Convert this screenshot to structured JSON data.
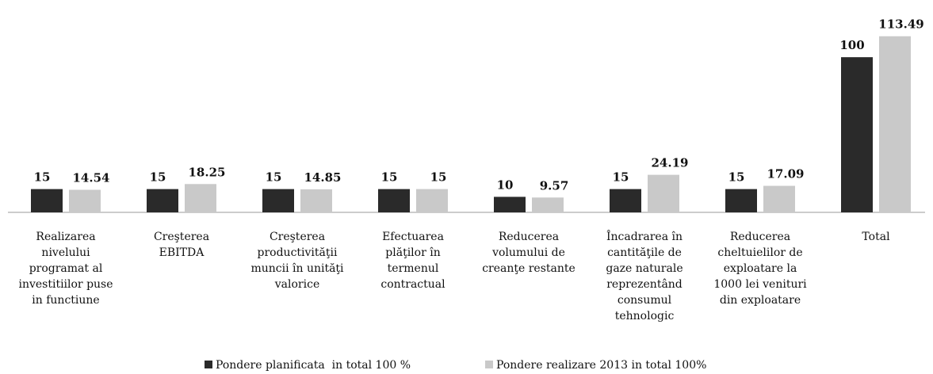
{
  "chart_data": {
    "type": "bar",
    "categories": [
      "Realizarea\nnivelului\nprogramat al\ninvestitiilor puse\nin functiune",
      "Creşterea\nEBITDA",
      "Creşterea\nproductivităţii\nmuncii în unităţi\nvalorice",
      "Efectuarea\nplăţilor în\ntermenul\ncontractual",
      "Reducerea\nvolumului de\ncreanţe restante",
      "Încadrarea în\ncantităţile de\ngaze naturale\nreprezentând\nconsumul\ntehnologic",
      "Reducerea\ncheltuielilor de\nexploatare la\n1000 lei venituri\ndin exploatare",
      "Total"
    ],
    "series": [
      {
        "name": "Pondere planificata  in total 100 %",
        "color": "#2a2a2a",
        "values": [
          15,
          15,
          15,
          15,
          10,
          15,
          15,
          100
        ]
      },
      {
        "name": "Pondere realizare 2013 in total 100%",
        "color": "#c9c9c9",
        "values": [
          14.54,
          18.25,
          14.85,
          15,
          9.57,
          24.19,
          17.09,
          113.49
        ]
      }
    ],
    "ylim": [
      0,
      120
    ]
  }
}
